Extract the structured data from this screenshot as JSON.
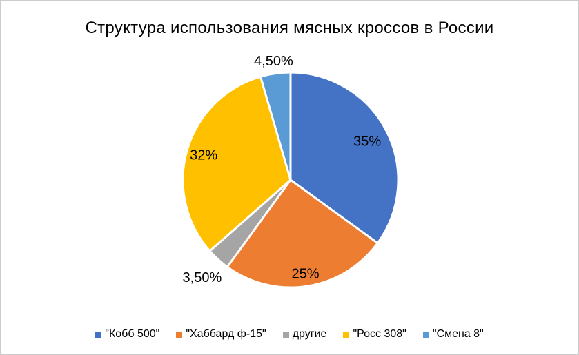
{
  "frame": {
    "background": "#FFFFFF",
    "border_color": "#CCCCCC"
  },
  "chart_data": {
    "type": "pie",
    "title": "Структура использования мясных кроссов в России",
    "legend_position": "bottom",
    "start_angle_deg": 0,
    "direction": "clockwise",
    "slice_separator_color": "#FFFFFF",
    "slices": [
      {
        "name": "\"Кобб 500\"",
        "value": 35,
        "label": "35%",
        "color": "#4472C4",
        "label_placement": "inside",
        "label_r": 0.8
      },
      {
        "name": "\"Хаббард ф-15\"",
        "value": 25,
        "label": "25%",
        "color": "#ED7D31",
        "label_placement": "inside",
        "label_r": 0.88
      },
      {
        "name": "другие",
        "value": 3.5,
        "label": "3,50%",
        "color": "#A5A5A5",
        "label_placement": "outside",
        "label_r": 1.22
      },
      {
        "name": "\"Росс 308\"",
        "value": 32,
        "label": "32%",
        "color": "#FFC000",
        "label_placement": "inside",
        "label_r": 0.84
      },
      {
        "name": "\"Смена 8\"",
        "value": 4.5,
        "label": "4,50%",
        "color": "#5B9BD5",
        "label_placement": "outside",
        "label_r": 1.12
      }
    ]
  }
}
